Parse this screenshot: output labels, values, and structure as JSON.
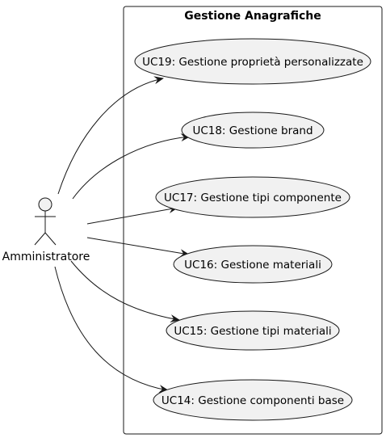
{
  "diagram": {
    "system": {
      "title": "Gestione Anagrafiche"
    },
    "actor": {
      "label": "Amministratore"
    },
    "use_cases": [
      {
        "id": "uc19",
        "label": "UC19: Gestione proprietà personalizzate"
      },
      {
        "id": "uc18",
        "label": "UC18: Gestione brand"
      },
      {
        "id": "uc17",
        "label": "UC17: Gestione tipi componente"
      },
      {
        "id": "uc16",
        "label": "UC16: Gestione materiali"
      },
      {
        "id": "uc15",
        "label": "UC15: Gestione tipi materiali"
      },
      {
        "id": "uc14",
        "label": "UC14: Gestione componenti base"
      }
    ],
    "colors": {
      "use_case_fill": "#f1f1f1",
      "stroke": "#181818",
      "background": "#ffffff"
    }
  }
}
